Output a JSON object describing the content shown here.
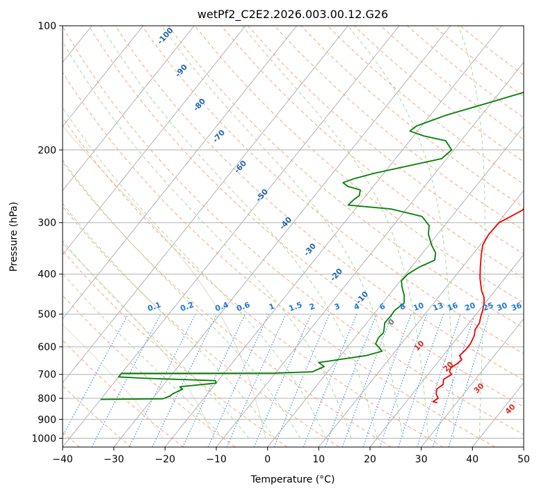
{
  "chart_data": {
    "type": "line",
    "title": "wetPf2_C2E2.2026.003.00.12.G26",
    "xlabel": "Temperature (°C)",
    "ylabel": "Pressure (hPa)",
    "xlim": [
      -40,
      50
    ],
    "ylim": [
      1050,
      100
    ],
    "y_scale": "log",
    "grid": true,
    "x_ticks": [
      -40,
      -30,
      -20,
      -10,
      0,
      10,
      20,
      30,
      40,
      50
    ],
    "x_tick_labels": [
      "−40",
      "−30",
      "−20",
      "−10",
      "0",
      "10",
      "20",
      "30",
      "40",
      "50"
    ],
    "y_ticks": [
      1000,
      900,
      800,
      700,
      600,
      500,
      400,
      300,
      200,
      100
    ],
    "y_tick_labels": [
      "1000",
      "900",
      "800",
      "700",
      "600",
      "500",
      "400",
      "300",
      "200",
      "100"
    ],
    "dry_adiabat_labels": [
      "-100",
      "-90",
      "-80",
      "-70",
      "-60",
      "-50",
      "-40",
      "-30",
      "-20",
      "-10"
    ],
    "moist_adiabat_labels": [
      "0",
      "10",
      "20",
      "30",
      "40"
    ],
    "mixing_ratio_labels": [
      "0.1",
      "0.2",
      "0.4",
      "0.6",
      "1",
      "1.5",
      "2",
      "3",
      "4",
      "6",
      "8",
      "10",
      "13",
      "16",
      "20",
      "25",
      "30",
      "36"
    ],
    "series": [
      {
        "color": "#ee0000",
        "points": [
          [
            26.2,
            820
          ],
          [
            25.2,
            815
          ],
          [
            25.7,
            800
          ],
          [
            24.6,
            780
          ],
          [
            24.0,
            760
          ],
          [
            24.5,
            740
          ],
          [
            23.8,
            720
          ],
          [
            24.6,
            700
          ],
          [
            23.8,
            690
          ],
          [
            23.4,
            675
          ],
          [
            24.0,
            660
          ],
          [
            24.3,
            645
          ],
          [
            23.2,
            630
          ],
          [
            23.5,
            610
          ],
          [
            23.5,
            590
          ],
          [
            23.0,
            565
          ],
          [
            22.2,
            545
          ],
          [
            22.0,
            525
          ],
          [
            21.2,
            505
          ],
          [
            20.7,
            490
          ],
          [
            19.8,
            470
          ],
          [
            18.9,
            455
          ],
          [
            17.5,
            440
          ],
          [
            15.2,
            410
          ],
          [
            13.5,
            385
          ],
          [
            11.8,
            360
          ],
          [
            10.5,
            340
          ],
          [
            10.0,
            320
          ],
          [
            10.2,
            300
          ],
          [
            11.5,
            290
          ],
          [
            12.8,
            280
          ],
          [
            12.8,
            265
          ],
          [
            12.2,
            250
          ],
          [
            10.2,
            235
          ],
          [
            8.6,
            215
          ],
          [
            7.6,
            200
          ],
          [
            7.0,
            185
          ],
          [
            6.5,
            175
          ],
          [
            5.5,
            163
          ],
          [
            3.5,
            148
          ],
          [
            2.3,
            138
          ],
          [
            1.1,
            128
          ],
          [
            0.8,
            118
          ],
          [
            1.0,
            110
          ],
          [
            1.0,
            104
          ],
          [
            0.8,
            100
          ]
        ]
      },
      {
        "color": "#008000",
        "points": [
          [
            -40.0,
            805
          ],
          [
            -32.0,
            803
          ],
          [
            -28.0,
            802
          ],
          [
            -27.0,
            790
          ],
          [
            -26.8,
            780
          ],
          [
            -25.6,
            760
          ],
          [
            -26.5,
            750
          ],
          [
            -20.0,
            735
          ],
          [
            -20.5,
            725
          ],
          [
            -35.0,
            715
          ],
          [
            -40.0,
            710
          ],
          [
            -40.0,
            696
          ],
          [
            -30.0,
            696
          ],
          [
            -10.0,
            695
          ],
          [
            -3.0,
            690
          ],
          [
            -1.5,
            670
          ],
          [
            -3.2,
            655
          ],
          [
            -1.5,
            650
          ],
          [
            5.0,
            630
          ],
          [
            7.4,
            615
          ],
          [
            6.0,
            600
          ],
          [
            5.0,
            590
          ],
          [
            4.6,
            570
          ],
          [
            4.8,
            555
          ],
          [
            4.2,
            540
          ],
          [
            3.5,
            525
          ],
          [
            3.6,
            505
          ],
          [
            3.5,
            490
          ],
          [
            4.2,
            470
          ],
          [
            3.0,
            450
          ],
          [
            1.3,
            430
          ],
          [
            0.2,
            415
          ],
          [
            0.4,
            400
          ],
          [
            1.5,
            385
          ],
          [
            3.5,
            370
          ],
          [
            2.5,
            355
          ],
          [
            0.5,
            340
          ],
          [
            -1.8,
            320
          ],
          [
            -3.0,
            305
          ],
          [
            -5.8,
            290
          ],
          [
            -13.0,
            278
          ],
          [
            -22.0,
            272
          ],
          [
            -21.8,
            265
          ],
          [
            -21.3,
            258
          ],
          [
            -22.0,
            250
          ],
          [
            -25.0,
            245
          ],
          [
            -26.5,
            240
          ],
          [
            -25.0,
            235
          ],
          [
            -22.0,
            228
          ],
          [
            -16.0,
            218
          ],
          [
            -11.0,
            210
          ],
          [
            -10.4,
            200
          ],
          [
            -13.0,
            190
          ],
          [
            -18.0,
            185
          ],
          [
            -21.5,
            180
          ],
          [
            -21.0,
            175
          ],
          [
            -17.0,
            165
          ],
          [
            -11.3,
            155
          ],
          [
            -5.3,
            145
          ],
          [
            -3.7,
            135
          ],
          [
            -3.3,
            125
          ],
          [
            -2.6,
            115
          ],
          [
            -1.2,
            108
          ],
          [
            -0.3,
            103
          ],
          [
            -0.3,
            100
          ]
        ]
      }
    ]
  }
}
